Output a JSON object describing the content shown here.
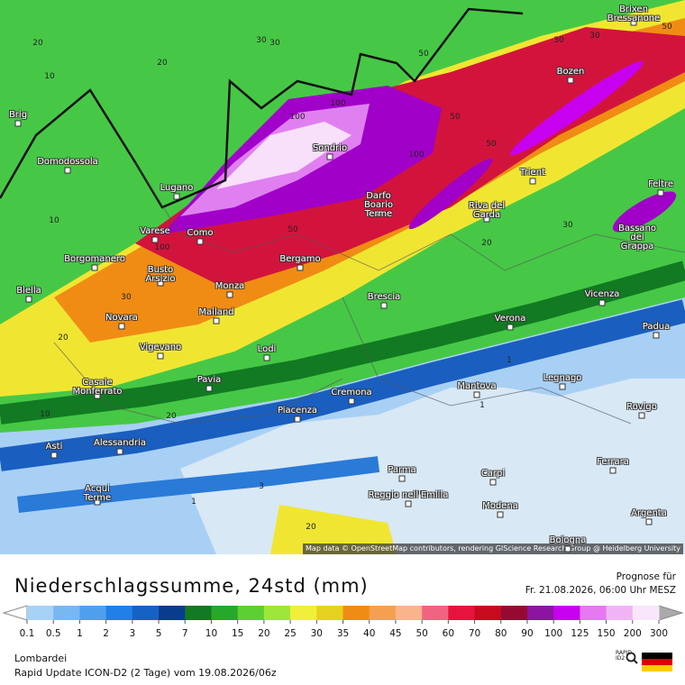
{
  "map": {
    "cities": [
      "Brig",
      "Domodossola",
      "Lugano",
      "Varese",
      "Como",
      "Borgomanero",
      "Busto\nArsizio",
      "Biella",
      "Monza",
      "Novara",
      "Mailand",
      "Vigevano",
      "Lodi",
      "Pavia",
      "Casale\nMonferrato",
      "Sondrio",
      "Darfo\nBoario\nTerme",
      "Bergamo",
      "Brescia",
      "Riva del\nGarda",
      "Trient",
      "Bozen",
      "Brixen\nBressanone",
      "Feltre",
      "Bassano\ndel Grappa",
      "Vicenza",
      "Verona",
      "Padua",
      "Legnago",
      "Rovigo",
      "Mantova",
      "Cremona",
      "Piacenza",
      "Alessandria",
      "Asti",
      "Parma",
      "Carpi",
      "Reggio nell'Emilia",
      "Modena",
      "Ferrara",
      "Acqui\nTerme",
      "Argenta",
      "Bologna"
    ],
    "contour_labels": [
      "20",
      "30",
      "20",
      "10",
      "10",
      "30",
      "50",
      "100",
      "100",
      "100",
      "50",
      "30",
      "30",
      "50",
      "50",
      "100",
      "30",
      "50",
      "20",
      "20",
      "10",
      "1",
      "1",
      "3",
      "1",
      "20",
      "20",
      "30"
    ],
    "attribution": "Map data © OpenStreetMap contributors, rendering GIScience Research Group @ Heidelberg University"
  },
  "legend": {
    "title": "Niederschlagssumme, 24std (mm)",
    "forecast_label": "Prognose für",
    "forecast_time": "Fr. 21.08.2026, 06:00 Uhr MESZ",
    "levels": [
      0.1,
      0.5,
      1,
      2,
      3,
      5,
      7,
      10,
      15,
      20,
      25,
      30,
      35,
      40,
      45,
      50,
      60,
      70,
      80,
      90,
      100,
      125,
      150,
      200,
      300
    ],
    "colors": [
      "#a6d2f7",
      "#78b8f2",
      "#4ea0ee",
      "#2080e6",
      "#1662c4",
      "#0a3c8e",
      "#127a22",
      "#26a82a",
      "#5cd032",
      "#9ee63a",
      "#f0f03c",
      "#e6d21e",
      "#f08c14",
      "#f5a050",
      "#fab48c",
      "#f06482",
      "#e6143c",
      "#c80a1e",
      "#960a32",
      "#8c14a0",
      "#c800f0",
      "#e678f0",
      "#f0b4f5",
      "#f8e6fa"
    ]
  },
  "footer": {
    "region": "Lombardei",
    "model": "Rapid Update ICON-D2 (2 Tage) vom 19.08.2026/06z",
    "logo": "RAPID ID2"
  }
}
